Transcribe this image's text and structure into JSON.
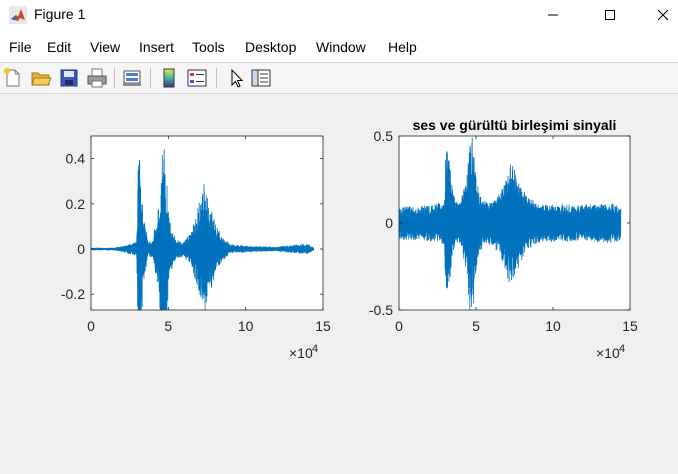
{
  "window": {
    "title": "Figure 1",
    "controls": [
      "minimize",
      "maximize",
      "close"
    ]
  },
  "menu": {
    "items": [
      {
        "id": "file",
        "label": "File"
      },
      {
        "id": "edit",
        "label": "Edit"
      },
      {
        "id": "view",
        "label": "View"
      },
      {
        "id": "insert",
        "label": "Insert"
      },
      {
        "id": "tools",
        "label": "Tools"
      },
      {
        "id": "desktop",
        "label": "Desktop"
      },
      {
        "id": "window",
        "label": "Window"
      },
      {
        "id": "help",
        "label": "Help"
      }
    ]
  },
  "toolbar": {
    "icons": [
      "new-figure-icon",
      "open-file-icon",
      "save-icon",
      "print-icon",
      "link-plot-icon",
      "colorbar-icon",
      "legend-icon",
      "edit-plot-icon",
      "property-inspector-icon"
    ]
  },
  "colors": {
    "line": "#0072bd",
    "axes_bg": "#ffffff",
    "figure_bg": "#f0f0f0"
  },
  "chart_data": [
    {
      "type": "line",
      "title": "",
      "xlabel": "",
      "ylabel": "",
      "xlim": [
        0,
        15
      ],
      "ylim": [
        -0.27,
        0.5
      ],
      "x_exponent_label": "×10",
      "x_exponent": "4",
      "xticks": [
        0,
        5,
        10,
        15
      ],
      "yticks": [
        -0.2,
        0,
        0.2,
        0.4
      ],
      "xtick_labels": [
        "0",
        "5",
        "10",
        "15"
      ],
      "ytick_labels": [
        "-0.2",
        "0",
        "0.2",
        "0.4"
      ],
      "grid": false,
      "signal_extent": [
        0,
        14.4
      ],
      "baseline_noise": 0.003,
      "envelope": [
        [
          0.0,
          0.003
        ],
        [
          1.5,
          0.004
        ],
        [
          2.0,
          0.01
        ],
        [
          2.5,
          0.02
        ],
        [
          2.95,
          0.03
        ],
        [
          3.05,
          0.42
        ],
        [
          3.2,
          0.4
        ],
        [
          3.4,
          0.15
        ],
        [
          3.7,
          0.03
        ],
        [
          4.0,
          0.04
        ],
        [
          4.4,
          0.2
        ],
        [
          4.6,
          0.45
        ],
        [
          4.75,
          0.48
        ],
        [
          4.9,
          0.3
        ],
        [
          5.1,
          0.12
        ],
        [
          5.5,
          0.04
        ],
        [
          6.0,
          0.03
        ],
        [
          6.5,
          0.08
        ],
        [
          6.8,
          0.15
        ],
        [
          7.0,
          0.22
        ],
        [
          7.3,
          0.3
        ],
        [
          7.6,
          0.2
        ],
        [
          7.9,
          0.16
        ],
        [
          8.1,
          0.1
        ],
        [
          8.5,
          0.05
        ],
        [
          9.0,
          0.02
        ],
        [
          10.0,
          0.012
        ],
        [
          11.0,
          0.01
        ],
        [
          12.0,
          0.008
        ],
        [
          13.5,
          0.02
        ],
        [
          14.0,
          0.02
        ],
        [
          14.4,
          0.005
        ]
      ]
    },
    {
      "type": "line",
      "title": "ses ve gürültü birleşimi sinyali",
      "xlabel": "",
      "ylabel": "",
      "xlim": [
        0,
        15
      ],
      "ylim": [
        -0.5,
        0.5
      ],
      "x_exponent_label": "×10",
      "x_exponent": "4",
      "xticks": [
        0,
        5,
        10,
        15
      ],
      "yticks": [
        -0.5,
        0,
        0.5
      ],
      "xtick_labels": [
        "0",
        "5",
        "10",
        "15"
      ],
      "ytick_labels": [
        "-0.5",
        "0",
        "0.5"
      ],
      "grid": false,
      "signal_extent": [
        0,
        14.4
      ],
      "baseline_noise": 0.1,
      "envelope": [
        [
          0.0,
          0.0
        ],
        [
          1.5,
          0.0
        ],
        [
          2.0,
          0.01
        ],
        [
          2.5,
          0.02
        ],
        [
          2.95,
          0.03
        ],
        [
          3.05,
          0.42
        ],
        [
          3.2,
          0.4
        ],
        [
          3.4,
          0.15
        ],
        [
          3.7,
          0.03
        ],
        [
          4.0,
          0.04
        ],
        [
          4.4,
          0.2
        ],
        [
          4.6,
          0.45
        ],
        [
          4.75,
          0.48
        ],
        [
          4.9,
          0.3
        ],
        [
          5.1,
          0.12
        ],
        [
          5.5,
          0.04
        ],
        [
          6.0,
          0.03
        ],
        [
          6.5,
          0.08
        ],
        [
          6.8,
          0.15
        ],
        [
          7.0,
          0.22
        ],
        [
          7.3,
          0.3
        ],
        [
          7.6,
          0.2
        ],
        [
          7.9,
          0.16
        ],
        [
          8.1,
          0.1
        ],
        [
          8.5,
          0.05
        ],
        [
          9.0,
          0.02
        ],
        [
          10.0,
          0.012
        ],
        [
          11.0,
          0.01
        ],
        [
          12.0,
          0.008
        ],
        [
          13.5,
          0.02
        ],
        [
          14.0,
          0.02
        ],
        [
          14.4,
          0.005
        ]
      ]
    }
  ]
}
